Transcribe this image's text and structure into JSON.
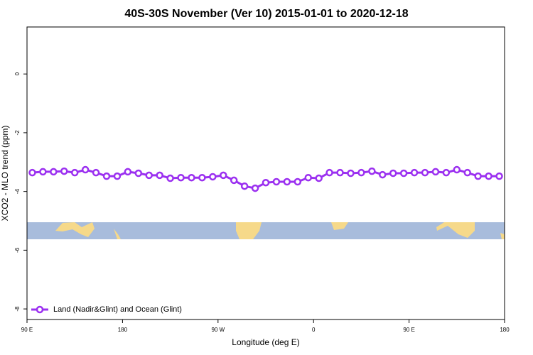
{
  "chart_data": {
    "type": "line",
    "title": "40S-30S November (Ver 10)   2015-01-01 to 2020-12-18",
    "xlabel": "Longitude (deg E)",
    "ylabel": "XCO2 - MLO trend (ppm)",
    "x": [
      95,
      105,
      115,
      125,
      135,
      145,
      155,
      165,
      175,
      185,
      195,
      205,
      215,
      225,
      235,
      245,
      255,
      265,
      275,
      285,
      295,
      305,
      315,
      325,
      335,
      345,
      355,
      365,
      375,
      385,
      395,
      405,
      415,
      425,
      435,
      445,
      455,
      465,
      475,
      485,
      495,
      505,
      515,
      525,
      535
    ],
    "series": [
      {
        "name": "Land (Nadir&Glint) and Ocean (Glint)",
        "color": "#9b30f0",
        "values": [
          -3.36,
          -3.33,
          -3.33,
          -3.31,
          -3.36,
          -3.26,
          -3.36,
          -3.48,
          -3.48,
          -3.33,
          -3.38,
          -3.45,
          -3.45,
          -3.55,
          -3.53,
          -3.53,
          -3.53,
          -3.5,
          -3.45,
          -3.62,
          -3.82,
          -3.89,
          -3.7,
          -3.67,
          -3.67,
          -3.67,
          -3.53,
          -3.55,
          -3.36,
          -3.36,
          -3.38,
          -3.36,
          -3.31,
          -3.43,
          -3.38,
          -3.38,
          -3.36,
          -3.36,
          -3.33,
          -3.36,
          -3.26,
          -3.36,
          -3.48,
          -3.48,
          -3.48
        ]
      }
    ],
    "xlim": [
      90,
      540
    ],
    "xticks": [
      {
        "value": 90,
        "label": "90 E"
      },
      180,
      {
        "value": 270,
        "label": "90 W"
      },
      {
        "value": 360,
        "label": "0"
      },
      {
        "value": 450,
        "label": "90 E"
      },
      {
        "value": 540,
        "label": "180"
      }
    ],
    "ylim": [
      -8.36,
      1.6
    ],
    "yticks": [
      0,
      -2,
      -4,
      -6,
      -8
    ],
    "legend": "bottom-left"
  }
}
